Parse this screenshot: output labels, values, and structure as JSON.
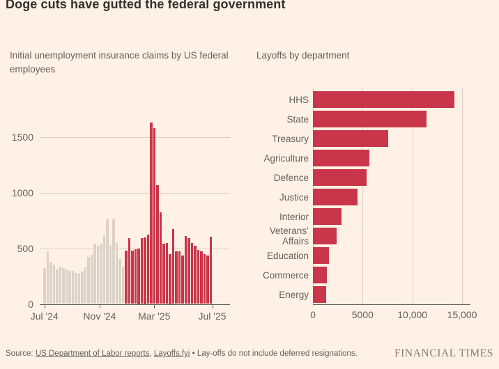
{
  "header": {
    "title": "Doge cuts have gutted the federal government"
  },
  "colors": {
    "background": "#FFF1E5",
    "bar_red": "#C9354A",
    "bar_gray": "#DDD2C8",
    "title_text": "#33302E",
    "muted_text": "#66605C",
    "gridline": "#D9CEC3",
    "axis_line": "#66605C",
    "brand_text": "#857B70"
  },
  "chart_data": [
    {
      "type": "bar",
      "title": "Initial unemployment insurance claims by US federal employees",
      "ylabel": "",
      "xlabel": "",
      "ylim": [
        0,
        1700
      ],
      "yticks": [
        0,
        500,
        1000,
        1500
      ],
      "grid": true,
      "legend": "none",
      "note": "weekly bars; gray before highlight_from_index, red after",
      "values": [
        320,
        470,
        380,
        350,
        310,
        335,
        320,
        310,
        295,
        300,
        280,
        270,
        290,
        330,
        420,
        440,
        540,
        520,
        540,
        615,
        760,
        530,
        760,
        550,
        405,
        335,
        480,
        590,
        480,
        490,
        500,
        590,
        600,
        620,
        1630,
        1580,
        1065,
        820,
        540,
        545,
        450,
        670,
        470,
        470,
        435,
        610,
        590,
        545,
        520,
        485,
        470,
        445,
        435,
        605
      ],
      "highlight_from_index": 26,
      "x_ticks": [
        {
          "label": "Jul '24",
          "index": 0
        },
        {
          "label": "Nov '24",
          "index": 17.6
        },
        {
          "label": "Mar '25",
          "index": 35
        },
        {
          "label": "Jul '25",
          "index": 53.5
        }
      ]
    },
    {
      "type": "bar",
      "orientation": "horizontal",
      "title": "Layoffs by department",
      "categories": [
        "HHS",
        "State",
        "Treasury",
        "Agriculture",
        "Defence",
        "Justice",
        "Interior",
        "Veterans’ Affairs",
        "Education",
        "Commerce",
        "Energy"
      ],
      "values": [
        14200,
        11400,
        7600,
        5700,
        5400,
        4500,
        2900,
        2400,
        1600,
        1400,
        1300
      ],
      "xlim": [
        0,
        15800
      ],
      "xticks": [
        0,
        5000,
        10000,
        15000
      ],
      "xtick_labels": [
        "0",
        "5000",
        "10,000",
        "15,000"
      ],
      "grid": true,
      "legend": "none"
    }
  ],
  "footer": {
    "source_prefix": "Source: ",
    "link1": "US Department of Labor reports",
    "separator": ", ",
    "link2": "Layoffs.fyi",
    "note": " • Lay-offs do not include deferred resignations.",
    "brand": "FINANCIAL TIMES"
  }
}
